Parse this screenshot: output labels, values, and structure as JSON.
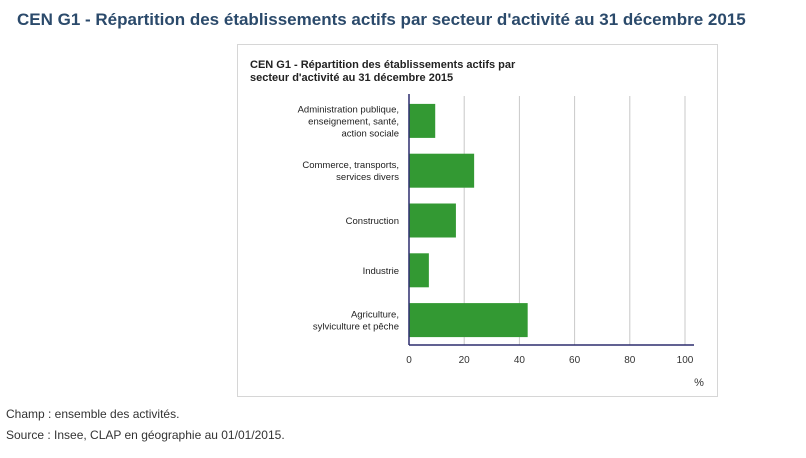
{
  "page": {
    "heading": "CEN G1 - Répartition des établissements actifs par secteur d'activité au 31 décembre 2015"
  },
  "footnotes": {
    "champ": "Champ : ensemble des activités.",
    "source": "Source : Insee, CLAP en géographie au 01/01/2015."
  },
  "colors": {
    "bar": "#339933",
    "axis": "#2d2d6e",
    "grid": "#c8c8c8",
    "heading": "#2b4a6b"
  },
  "chart_data": {
    "type": "bar",
    "orientation": "horizontal",
    "title": "CEN G1 - Répartition des établissements actifs par secteur d'activité au 31 décembre 2015",
    "title_lines": [
      "CEN G1 - Répartition des établissements actifs par",
      "secteur d'activité au 31 décembre 2015"
    ],
    "categories": [
      [
        "Administration publique,",
        "enseignement, santé,",
        "action sociale"
      ],
      [
        "Commerce, transports,",
        "services divers"
      ],
      [
        "Construction"
      ],
      [
        "Industrie"
      ],
      [
        "Agriculture,",
        "sylviculture et pêche"
      ]
    ],
    "values": [
      9.5,
      23.6,
      17,
      7.2,
      43
    ],
    "xlim": [
      0,
      100
    ],
    "xticks": [
      0,
      20,
      40,
      60,
      80,
      100
    ],
    "xlabel": "%",
    "grid": true,
    "legend": "none"
  }
}
